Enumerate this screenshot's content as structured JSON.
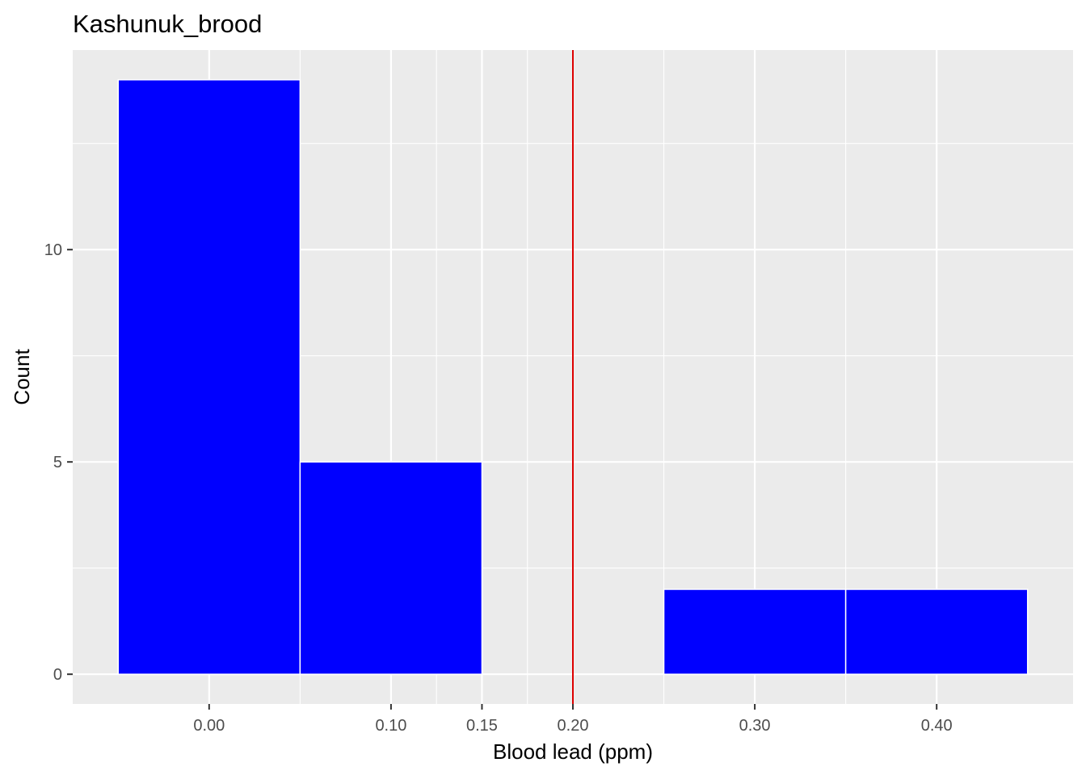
{
  "chart_data": {
    "type": "bar",
    "title": "Kashunuk_brood",
    "xlabel": "Blood lead (ppm)",
    "ylabel": "Count",
    "bins": [
      {
        "x0": -0.05,
        "x1": 0.05,
        "count": 14
      },
      {
        "x0": 0.05,
        "x1": 0.15,
        "count": 5
      },
      {
        "x0": 0.25,
        "x1": 0.35,
        "count": 2
      },
      {
        "x0": 0.35,
        "x1": 0.45,
        "count": 2
      }
    ],
    "xlim": [
      -0.075,
      0.475
    ],
    "ylim": [
      -0.7,
      14.7
    ],
    "x_ticks": [
      {
        "value": 0.0,
        "label": "0.00"
      },
      {
        "value": 0.1,
        "label": "0.10"
      },
      {
        "value": 0.15,
        "label": "0.15"
      },
      {
        "value": 0.2,
        "label": "0.20"
      },
      {
        "value": 0.3,
        "label": "0.30"
      },
      {
        "value": 0.4,
        "label": "0.40"
      }
    ],
    "y_ticks": [
      {
        "value": 0,
        "label": "0"
      },
      {
        "value": 5,
        "label": "5"
      },
      {
        "value": 10,
        "label": "10"
      }
    ],
    "reference_line": {
      "x": 0.2,
      "color": "#dd0000"
    },
    "bar_color": "#0000ff",
    "bar_outline_color": "#ffffff",
    "panel_background": "#ebebeb",
    "grid": true
  }
}
